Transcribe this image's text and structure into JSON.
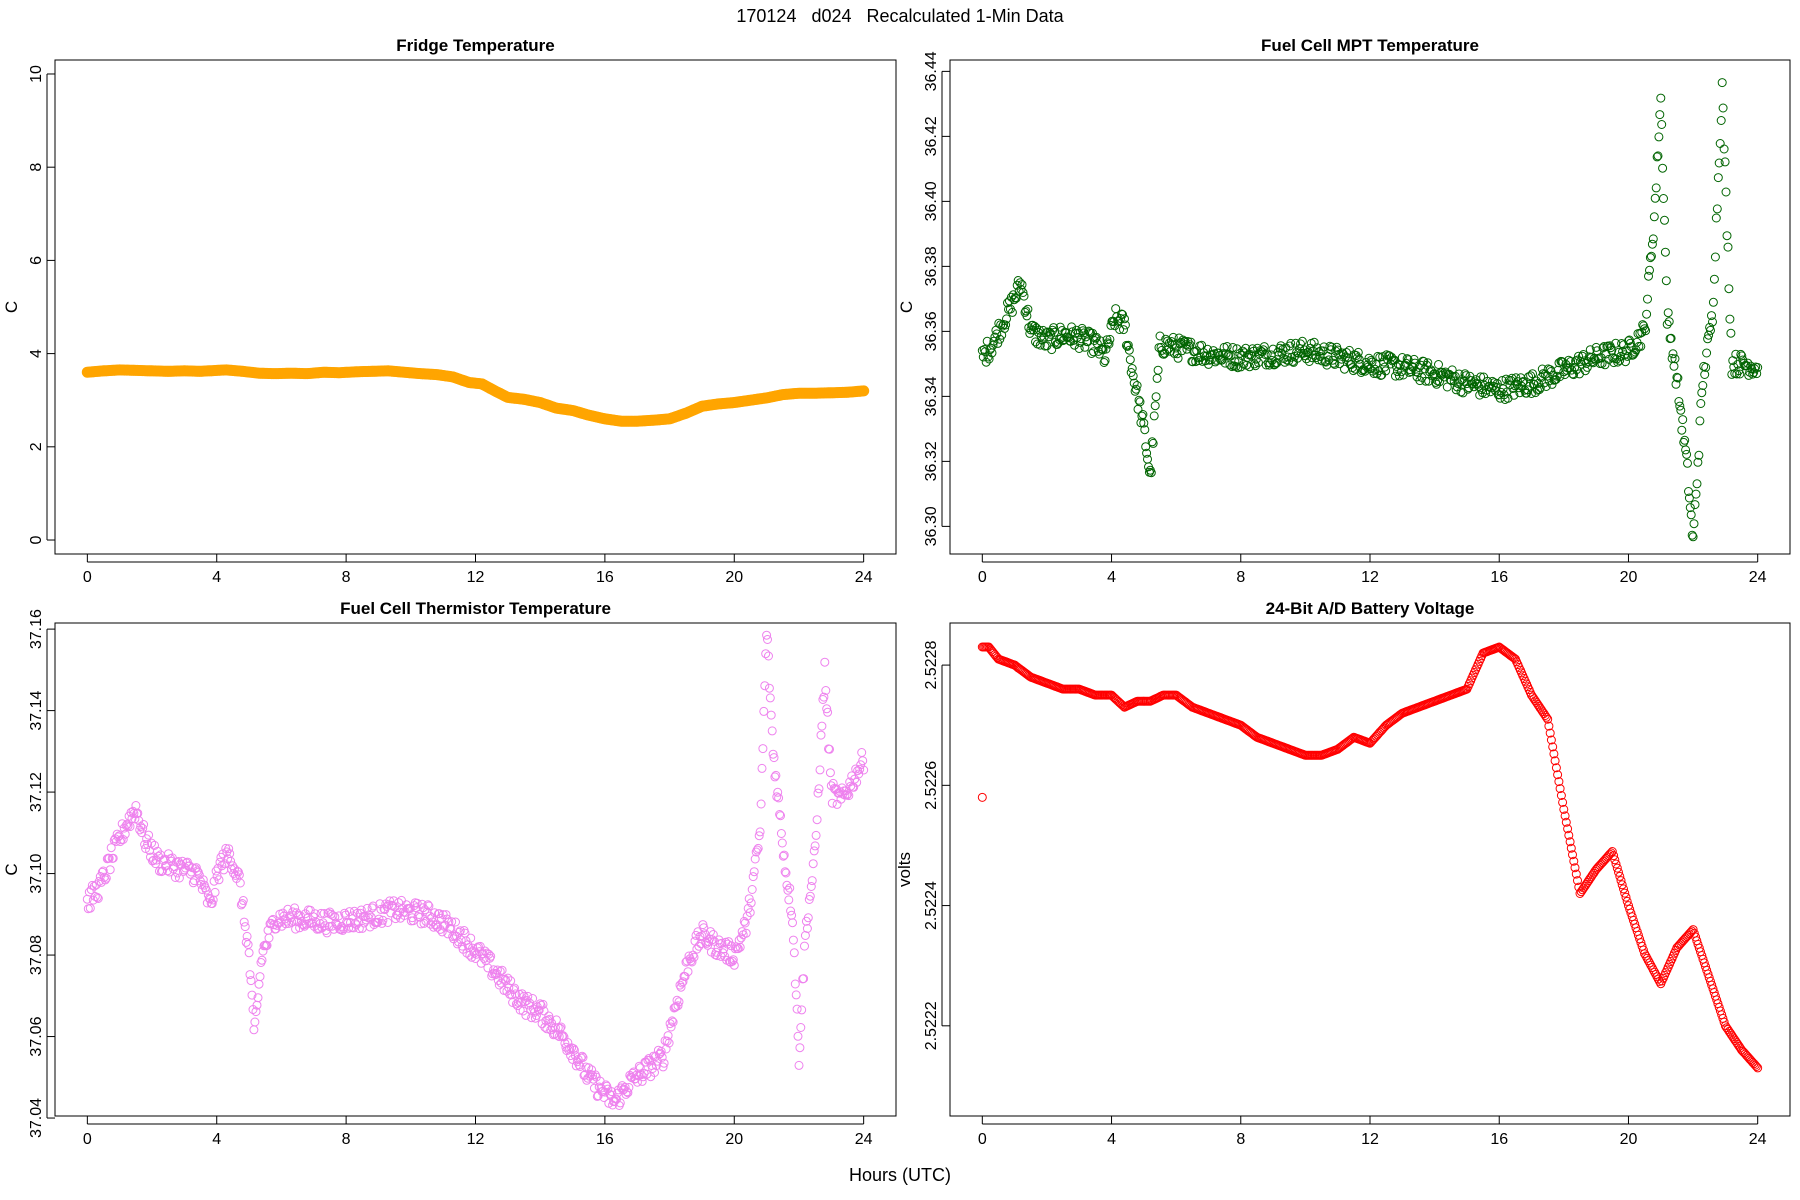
{
  "figure": {
    "title": "170124   d024   Recalculated 1-Min Data",
    "xlabel": "Hours (UTC)"
  },
  "chart_data": [
    {
      "type": "scatter",
      "title": "Fridge Temperature",
      "xlabel": "",
      "ylabel": "C",
      "xlim": [
        -1,
        25
      ],
      "ylim": [
        -0.3,
        10.3
      ],
      "xticks": [
        0,
        4,
        8,
        12,
        16,
        20,
        24
      ],
      "yticks": [
        0,
        2,
        4,
        6,
        8,
        10
      ],
      "ytick_labels": [
        "0",
        "2",
        "4",
        "6",
        "8",
        "10"
      ],
      "color": "#FFA500",
      "series": [
        {
          "x": [
            0,
            0.5,
            1,
            1.5,
            2,
            2.5,
            3,
            3.5,
            4,
            4.3,
            4.8,
            5.3,
            5.8,
            6.3,
            6.8,
            7.3,
            7.8,
            8.3,
            8.8,
            9.3,
            9.8,
            10.3,
            10.8,
            11.3,
            11.8,
            12.2,
            12.6,
            13,
            13.5,
            14,
            14.5,
            15,
            15.5,
            16,
            16.5,
            17,
            17.5,
            18,
            18.5,
            19,
            19.5,
            20,
            20.5,
            21,
            21.5,
            22,
            22.5,
            23,
            23.5,
            24
          ],
          "y": [
            3.6,
            3.63,
            3.65,
            3.64,
            3.63,
            3.62,
            3.63,
            3.62,
            3.64,
            3.65,
            3.62,
            3.58,
            3.57,
            3.58,
            3.57,
            3.6,
            3.59,
            3.61,
            3.62,
            3.63,
            3.6,
            3.57,
            3.55,
            3.5,
            3.38,
            3.35,
            3.2,
            3.06,
            3.02,
            2.95,
            2.83,
            2.78,
            2.68,
            2.6,
            2.55,
            2.55,
            2.57,
            2.6,
            2.72,
            2.87,
            2.92,
            2.95,
            3.0,
            3.05,
            3.12,
            3.15,
            3.15,
            3.16,
            3.17,
            3.2
          ],
          "size": 5,
          "filled": true
        }
      ]
    },
    {
      "type": "scatter",
      "title": "Fuel Cell MPT Temperature",
      "xlabel": "",
      "ylabel": "C",
      "xlim": [
        -1,
        25
      ],
      "ylim": [
        36.2915,
        36.4435
      ],
      "xticks": [
        0,
        4,
        8,
        12,
        16,
        20,
        24
      ],
      "yticks": [
        36.3,
        36.32,
        36.34,
        36.36,
        36.38,
        36.4,
        36.42,
        36.44
      ],
      "ytick_labels": [
        "36.30",
        "36.32",
        "36.34",
        "36.36",
        "36.38",
        "36.40",
        "36.42",
        "36.44"
      ],
      "color": "#006400",
      "series": [
        {
          "x": [
            0,
            0.3,
            0.6,
            0.9,
            1.2,
            1.5,
            2,
            2.5,
            3,
            3.5,
            3.8,
            4.1,
            4.4,
            4.7,
            5,
            5.2,
            5.5,
            6,
            7,
            8,
            9,
            10,
            11,
            12,
            13,
            14,
            15,
            16,
            17,
            18,
            19,
            20,
            20.5,
            20.8,
            21,
            21.2,
            21.5,
            21.8,
            22,
            22.3,
            22.6,
            22.9,
            23.2,
            23.6,
            24
          ],
          "y": [
            36.352,
            36.356,
            36.362,
            36.368,
            36.375,
            36.36,
            36.357,
            36.359,
            36.358,
            36.356,
            36.352,
            36.364,
            36.362,
            36.345,
            36.33,
            36.315,
            36.356,
            36.355,
            36.353,
            36.352,
            36.353,
            36.354,
            36.352,
            36.35,
            36.349,
            36.347,
            36.344,
            36.342,
            36.344,
            36.348,
            36.352,
            36.354,
            36.36,
            36.395,
            36.432,
            36.365,
            36.345,
            36.32,
            36.295,
            36.345,
            36.365,
            36.435,
            36.35,
            36.35,
            36.349
          ],
          "size": 4,
          "filled": false
        }
      ]
    },
    {
      "type": "scatter",
      "title": "Fuel Cell Thermistor Temperature",
      "xlabel": "",
      "ylabel": "C",
      "xlim": [
        -1,
        25
      ],
      "ylim": [
        37.0405,
        37.1615
      ],
      "xticks": [
        0,
        4,
        8,
        12,
        16,
        20,
        24
      ],
      "yticks": [
        37.04,
        37.06,
        37.08,
        37.1,
        37.12,
        37.14,
        37.16
      ],
      "ytick_labels": [
        "37.04",
        "37.06",
        "37.08",
        "37.10",
        "37.12",
        "37.14",
        "37.16"
      ],
      "color": "#EE82EE",
      "series": [
        {
          "x": [
            0,
            0.4,
            0.8,
            1.2,
            1.5,
            1.8,
            2.2,
            2.6,
            3,
            3.4,
            3.8,
            4.1,
            4.4,
            4.7,
            5,
            5.15,
            5.4,
            5.8,
            6.5,
            7.5,
            8.5,
            9.5,
            10.5,
            11,
            11.5,
            12,
            12.5,
            13,
            13.5,
            14,
            14.5,
            15,
            15.5,
            16,
            16.3,
            16.8,
            17.3,
            17.8,
            18.2,
            18.6,
            19,
            19.5,
            20,
            20.4,
            20.8,
            21,
            21.2,
            21.4,
            21.6,
            21.8,
            22,
            22.2,
            22.5,
            22.8,
            23,
            23.3,
            23.6,
            24
          ],
          "y": [
            37.093,
            37.097,
            37.105,
            37.112,
            37.116,
            37.108,
            37.103,
            37.102,
            37.101,
            37.1,
            37.092,
            37.102,
            37.105,
            37.098,
            37.08,
            37.06,
            37.08,
            37.089,
            37.089,
            37.088,
            37.089,
            37.091,
            37.09,
            37.088,
            37.085,
            37.081,
            37.077,
            37.072,
            37.068,
            37.066,
            37.062,
            37.057,
            37.05,
            37.046,
            37.044,
            37.049,
            37.052,
            37.055,
            37.068,
            37.079,
            37.085,
            37.082,
            37.08,
            37.088,
            37.11,
            37.16,
            37.13,
            37.115,
            37.1,
            37.09,
            37.055,
            37.085,
            37.105,
            37.15,
            37.12,
            37.118,
            37.122,
            37.128
          ],
          "size": 4,
          "filled": false
        }
      ]
    },
    {
      "type": "line",
      "title": "24-Bit A/D Battery Voltage",
      "xlabel": "",
      "ylabel": "volts",
      "xlim": [
        -1,
        25
      ],
      "ylim": [
        2.52205,
        2.52287
      ],
      "xticks": [
        0,
        4,
        8,
        12,
        16,
        20,
        24
      ],
      "yticks": [
        2.5222,
        2.5224,
        2.5226,
        2.5228
      ],
      "ytick_labels": [
        "2.5222",
        "2.5224",
        "2.5226",
        "2.5228"
      ],
      "color": "#FF0000",
      "outlier": {
        "x": 0,
        "y": 2.52258
      },
      "series": [
        {
          "x": [
            0,
            0.2,
            0.5,
            1,
            1.5,
            2,
            2.5,
            3,
            3.5,
            4,
            4.4,
            4.8,
            5.2,
            5.6,
            6,
            6.5,
            7,
            7.5,
            8,
            8.5,
            9,
            9.5,
            10,
            10.5,
            11,
            11.5,
            12,
            12.5,
            13,
            13.5,
            14,
            14.5,
            15,
            15.5,
            16,
            16.5,
            17,
            17.5,
            18,
            18.5,
            19,
            19.5,
            20,
            20.5,
            21,
            21.5,
            22,
            22.5,
            23,
            23.5,
            24
          ],
          "y": [
            2.52283,
            2.52283,
            2.52281,
            2.5228,
            2.52278,
            2.52277,
            2.52276,
            2.52276,
            2.52275,
            2.52275,
            2.52273,
            2.52274,
            2.52274,
            2.52275,
            2.52275,
            2.52273,
            2.52272,
            2.52271,
            2.5227,
            2.52268,
            2.52267,
            2.52266,
            2.52265,
            2.52265,
            2.52266,
            2.52268,
            2.52267,
            2.5227,
            2.52272,
            2.52273,
            2.52274,
            2.52275,
            2.52276,
            2.52282,
            2.52283,
            2.52281,
            2.52275,
            2.52271,
            2.52256,
            2.52242,
            2.52246,
            2.52249,
            2.5224,
            2.52232,
            2.52227,
            2.52233,
            2.52236,
            2.52228,
            2.5222,
            2.52216,
            2.52213
          ],
          "size": 4,
          "filled": false
        }
      ]
    }
  ]
}
